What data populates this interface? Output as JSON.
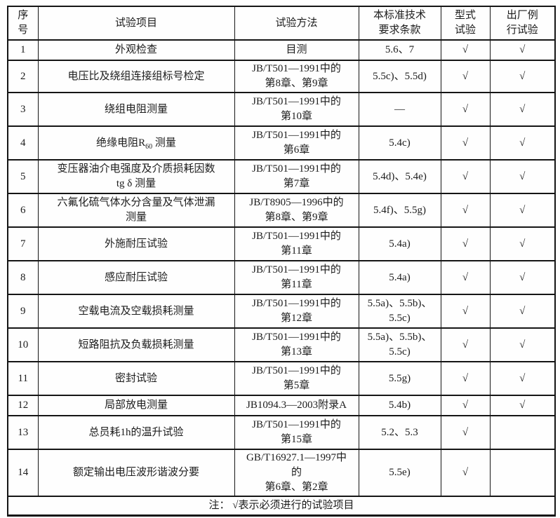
{
  "table": {
    "headers": [
      "序\n号",
      "试验项目",
      "试验方法",
      "本标准技术\n要求条款",
      "型式\n试验",
      "出厂例\n行试验"
    ],
    "check_symbol": "√",
    "rows": [
      {
        "no": "1",
        "item": "外观检查",
        "method": "目测",
        "clause": "5.6、7",
        "type_test": "√",
        "routine_test": "√"
      },
      {
        "no": "2",
        "item": "电压比及绕组连接组标号检定",
        "method": "JB/T501—1991中的\n第8章、第9章",
        "clause": "5.5c)、5.5d)",
        "type_test": "√",
        "routine_test": "√"
      },
      {
        "no": "3",
        "item": "绕组电阻测量",
        "method": "JB/T501—1991中的\n第10章",
        "clause": "—",
        "type_test": "√",
        "routine_test": "√"
      },
      {
        "no": "4",
        "item_parts": {
          "prefix": "绝缘电阻R",
          "sub": "60",
          "suffix": " 测量"
        },
        "method": "JB/T501—1991中的\n第6章",
        "clause": "5.4c)",
        "type_test": "√",
        "routine_test": "√"
      },
      {
        "no": "5",
        "item": "变压器油介电强度及介质损耗因数\ntg δ 测量",
        "method": "JB/T501—1991中的\n第7章",
        "clause": "5.4d)、5.4e)",
        "type_test": "√",
        "routine_test": "√"
      },
      {
        "no": "6",
        "item": "六氟化硫气体水分含量及气体泄漏\n测量",
        "method": "JB/T8905—1996中的\n第8章、第9章",
        "clause": "5.4f)、5.5g)",
        "type_test": "√",
        "routine_test": "√"
      },
      {
        "no": "7",
        "item": "外施耐压试验",
        "method": "JB/T501—1991中的\n第11章",
        "clause": "5.4a)",
        "type_test": "√",
        "routine_test": "√"
      },
      {
        "no": "8",
        "item": "感应耐压试验",
        "method": "JB/T501—1991中的\n第11章",
        "clause": "5.4a)",
        "type_test": "√",
        "routine_test": "√"
      },
      {
        "no": "9",
        "item": "空载电流及空载损耗测量",
        "method": "JB/T501—1991中的\n第12章",
        "clause": "5.5a)、5.5b)、\n5.5c)",
        "type_test": "√",
        "routine_test": "√"
      },
      {
        "no": "10",
        "item": "短路阻抗及负载损耗测量",
        "method": "JB/T501—1991中的\n第13章",
        "clause": "5.5a)、5.5b)、\n5.5c)",
        "type_test": "√",
        "routine_test": "√"
      },
      {
        "no": "11",
        "item": "密封试验",
        "method": "JB/T501—1991中的\n第5章",
        "clause": "5.5g)",
        "type_test": "√",
        "routine_test": "√"
      },
      {
        "no": "12",
        "item": "局部放电测量",
        "method": "JB1094.3—2003附录A",
        "clause": "5.4b)",
        "type_test": "√",
        "routine_test": "√"
      },
      {
        "no": "13",
        "item": "总员耗1h的温升试验",
        "method": "JB/T501—1991中的\n第15章",
        "clause": "5.2、5.3",
        "type_test": "√",
        "routine_test": ""
      },
      {
        "no": "14",
        "item": "额定输出电压波形谐波分要",
        "method": "GB/T16927.1—1997中\n的\n第6章、第2章",
        "clause": "5.5e)",
        "type_test": "√",
        "routine_test": ""
      }
    ],
    "footer_note": "注： √表示必须进行的试验项目"
  }
}
